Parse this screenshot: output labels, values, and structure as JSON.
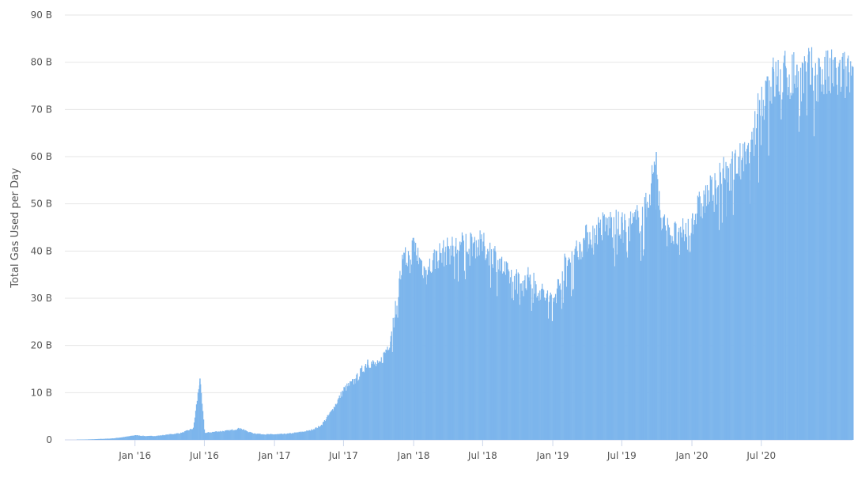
{
  "chart_data": {
    "type": "bar",
    "title": "",
    "xlabel": "",
    "ylabel": "Total Gas Used per Day",
    "ylim": [
      0,
      90
    ],
    "yticks": [
      {
        "v": 0,
        "label": "0"
      },
      {
        "v": 10,
        "label": "10 B"
      },
      {
        "v": 20,
        "label": "20 B"
      },
      {
        "v": 30,
        "label": "30 B"
      },
      {
        "v": 40,
        "label": "40 B"
      },
      {
        "v": 50,
        "label": "50 B"
      },
      {
        "v": 60,
        "label": "60 B"
      },
      {
        "v": 70,
        "label": "70 B"
      },
      {
        "v": 80,
        "label": "80 B"
      },
      {
        "v": 90,
        "label": "90 B"
      }
    ],
    "xlim": [
      "2015-07-01",
      "2021-02-25"
    ],
    "xticks": [
      {
        "d": "2016-01-01",
        "label": "Jan '16"
      },
      {
        "d": "2016-07-01",
        "label": "Jul '16"
      },
      {
        "d": "2017-01-01",
        "label": "Jan '17"
      },
      {
        "d": "2017-07-01",
        "label": "Jul '17"
      },
      {
        "d": "2018-01-01",
        "label": "Jan '18"
      },
      {
        "d": "2018-07-01",
        "label": "Jul '18"
      },
      {
        "d": "2019-01-01",
        "label": "Jan '19"
      },
      {
        "d": "2019-07-01",
        "label": "Jul '19"
      },
      {
        "d": "2020-01-01",
        "label": "Jan '20"
      },
      {
        "d": "2020-07-01",
        "label": "Jul '20"
      }
    ],
    "grid": true,
    "color": "#7cb5ec",
    "unit": "B",
    "series": [
      {
        "values": [
          [
            "2015-08-01",
            0.05
          ],
          [
            "2015-09-01",
            0.1
          ],
          [
            "2015-10-01",
            0.2
          ],
          [
            "2015-11-01",
            0.3
          ],
          [
            "2015-12-01",
            0.6
          ],
          [
            "2016-01-01",
            1.0
          ],
          [
            "2016-02-01",
            0.8
          ],
          [
            "2016-03-01",
            0.9
          ],
          [
            "2016-04-01",
            1.2
          ],
          [
            "2016-05-01",
            1.5
          ],
          [
            "2016-06-01",
            2.5
          ],
          [
            "2016-06-18",
            13
          ],
          [
            "2016-07-01",
            1.5
          ],
          [
            "2016-08-01",
            1.8
          ],
          [
            "2016-09-01",
            2.0
          ],
          [
            "2016-10-01",
            2.5
          ],
          [
            "2016-11-01",
            1.5
          ],
          [
            "2016-12-01",
            1.2
          ],
          [
            "2017-01-01",
            1.2
          ],
          [
            "2017-02-01",
            1.3
          ],
          [
            "2017-03-01",
            1.6
          ],
          [
            "2017-04-01",
            2.0
          ],
          [
            "2017-05-01",
            3.0
          ],
          [
            "2017-06-01",
            6.5
          ],
          [
            "2017-07-01",
            11
          ],
          [
            "2017-08-01",
            13
          ],
          [
            "2017-09-01",
            17
          ],
          [
            "2017-10-01",
            16
          ],
          [
            "2017-11-01",
            22
          ],
          [
            "2017-12-01",
            38
          ],
          [
            "2018-01-01",
            42
          ],
          [
            "2018-02-01",
            36
          ],
          [
            "2018-03-01",
            40
          ],
          [
            "2018-04-01",
            41
          ],
          [
            "2018-05-01",
            42
          ],
          [
            "2018-06-01",
            43
          ],
          [
            "2018-07-01",
            42
          ],
          [
            "2018-08-01",
            40
          ],
          [
            "2018-09-01",
            36
          ],
          [
            "2018-10-01",
            35
          ],
          [
            "2018-11-01",
            35
          ],
          [
            "2018-12-01",
            32
          ],
          [
            "2019-01-01",
            30
          ],
          [
            "2019-02-01",
            38
          ],
          [
            "2019-03-01",
            41
          ],
          [
            "2019-04-01",
            44
          ],
          [
            "2019-05-01",
            46
          ],
          [
            "2019-06-01",
            47
          ],
          [
            "2019-07-01",
            46
          ],
          [
            "2019-08-01",
            47
          ],
          [
            "2019-09-01",
            50
          ],
          [
            "2019-09-28",
            61
          ],
          [
            "2019-10-10",
            47
          ],
          [
            "2019-11-01",
            45
          ],
          [
            "2019-12-01",
            44
          ],
          [
            "2020-01-01",
            48
          ],
          [
            "2020-02-01",
            52
          ],
          [
            "2020-03-01",
            55
          ],
          [
            "2020-04-01",
            58
          ],
          [
            "2020-05-01",
            60
          ],
          [
            "2020-06-01",
            61
          ],
          [
            "2020-06-25",
            72
          ],
          [
            "2020-07-15",
            77
          ],
          [
            "2020-08-01",
            78
          ],
          [
            "2020-09-01",
            79
          ],
          [
            "2020-10-01",
            79.5
          ],
          [
            "2020-11-01",
            79.5
          ],
          [
            "2020-12-01",
            79
          ],
          [
            "2021-02-25",
            79
          ]
        ]
      }
    ]
  }
}
